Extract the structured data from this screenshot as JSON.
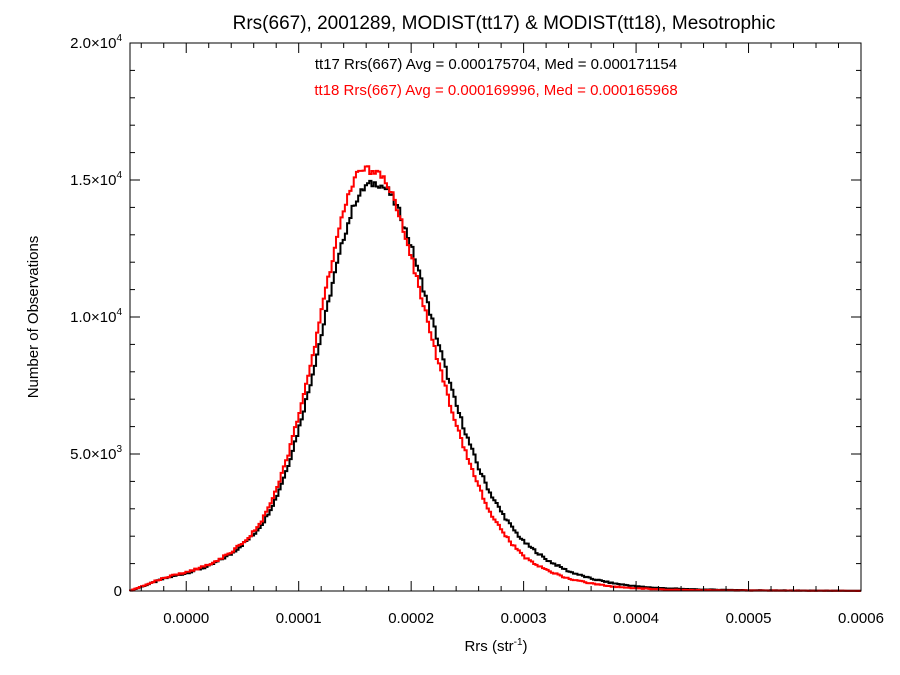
{
  "chart_data": {
    "type": "histogram",
    "title": "Rrs(667), 2001289, MODIST(tt17) & MODIST(tt18), Mesotrophic",
    "xlabel": "Rrs (str",
    "xlabel_sup": "-1",
    "xlabel_close": ")",
    "ylabel": "Number of Observations",
    "xlim": [
      -5e-05,
      0.0006
    ],
    "ylim": [
      0,
      20000
    ],
    "x_ticks": [
      {
        "value": 0.0,
        "label": "0.0000"
      },
      {
        "value": 0.0001,
        "label": "0.0001"
      },
      {
        "value": 0.0002,
        "label": "0.0002"
      },
      {
        "value": 0.0003,
        "label": "0.0003"
      },
      {
        "value": 0.0004,
        "label": "0.0004"
      },
      {
        "value": 0.0005,
        "label": "0.0005"
      },
      {
        "value": 0.0006,
        "label": "0.0006"
      }
    ],
    "y_ticks": [
      {
        "value": 0,
        "mant": "0",
        "exp": ""
      },
      {
        "value": 5000,
        "mant": "5.0×10",
        "exp": "3"
      },
      {
        "value": 10000,
        "mant": "1.0×10",
        "exp": "4"
      },
      {
        "value": 15000,
        "mant": "1.5×10",
        "exp": "4"
      },
      {
        "value": 20000,
        "mant": "2.0×10",
        "exp": "4"
      }
    ],
    "annotations": [
      {
        "text": "tt17 Rrs(667) Avg = 0.000175704, Med = 0.000171154",
        "color": "#000000"
      },
      {
        "text": "tt18 Rrs(667) Avg = 0.000169996, Med = 0.000165968",
        "color": "#ff0000"
      }
    ],
    "series": [
      {
        "name": "tt17",
        "color": "#000000",
        "x": [
          -5e-05,
          -3e-05,
          -2e-05,
          0.0,
          2e-05,
          4e-05,
          6e-05,
          7e-05,
          8e-05,
          9e-05,
          0.0001,
          0.00011,
          0.00012,
          0.00013,
          0.00014,
          0.00015,
          0.00016,
          0.00017,
          0.00018,
          0.00019,
          0.0002,
          0.00021,
          0.00022,
          0.00023,
          0.00024,
          0.00025,
          0.00026,
          0.00027,
          0.00028,
          0.00029,
          0.0003,
          0.00032,
          0.00034,
          0.00036,
          0.00038,
          0.0004,
          0.00042,
          0.00045,
          0.0005,
          0.00055,
          0.0006
        ],
        "y": [
          0,
          300,
          450,
          650,
          900,
          1350,
          2050,
          2600,
          3400,
          4500,
          5900,
          7500,
          9300,
          11200,
          12900,
          14200,
          14800,
          14900,
          14600,
          13800,
          12600,
          11200,
          9700,
          8200,
          6800,
          5600,
          4500,
          3600,
          2900,
          2300,
          1800,
          1150,
          720,
          450,
          280,
          170,
          110,
          60,
          30,
          15,
          8
        ]
      },
      {
        "name": "tt18",
        "color": "#ff0000",
        "x": [
          -5e-05,
          -3e-05,
          -2e-05,
          0.0,
          2e-05,
          4e-05,
          6e-05,
          7e-05,
          8e-05,
          9e-05,
          0.0001,
          0.00011,
          0.00012,
          0.00013,
          0.00014,
          0.00015,
          0.00016,
          0.00017,
          0.00018,
          0.00019,
          0.0002,
          0.00021,
          0.00022,
          0.00023,
          0.00024,
          0.00025,
          0.00026,
          0.00027,
          0.00028,
          0.00029,
          0.0003,
          0.00032,
          0.00034,
          0.00036,
          0.00038,
          0.0004,
          0.00042,
          0.00045,
          0.0005,
          0.00055,
          0.0006
        ],
        "y": [
          0,
          320,
          480,
          680,
          950,
          1400,
          2150,
          2750,
          3650,
          4850,
          6400,
          8100,
          10100,
          12100,
          13900,
          15100,
          15400,
          15300,
          14800,
          13700,
          12200,
          10600,
          9000,
          7500,
          6100,
          4900,
          3800,
          2900,
          2250,
          1700,
          1250,
          760,
          450,
          270,
          160,
          100,
          60,
          30,
          15,
          8,
          4
        ]
      }
    ]
  }
}
